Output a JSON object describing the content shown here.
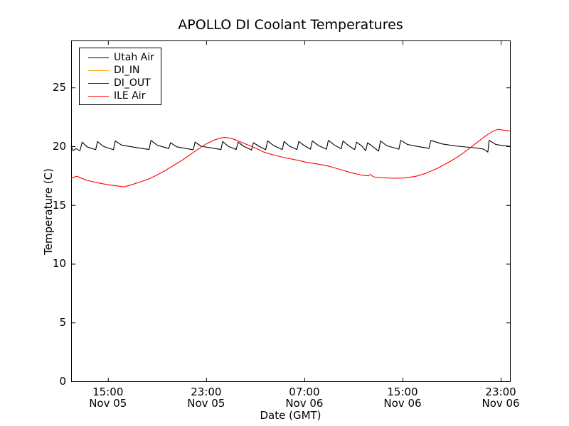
{
  "chart_data": {
    "type": "line",
    "title": "APOLLO DI Coolant Temperatures",
    "xlabel": "Date (GMT)",
    "ylabel": "Temperature (C)",
    "x_units": "hours after Nov 05 12:00 GMT",
    "xlim_hours": [
      0,
      35.75
    ],
    "ylim": [
      0,
      29
    ],
    "grid": false,
    "yticks": [
      0,
      5,
      10,
      15,
      20,
      25
    ],
    "xticks": [
      {
        "h": 3,
        "time": "15:00",
        "date": "Nov 05"
      },
      {
        "h": 11,
        "time": "23:00",
        "date": "Nov 05"
      },
      {
        "h": 19,
        "time": "07:00",
        "date": "Nov 06"
      },
      {
        "h": 27,
        "time": "15:00",
        "date": "Nov 06"
      },
      {
        "h": 35,
        "time": "23:00",
        "date": "Nov 06"
      }
    ],
    "legend": {
      "position": "upper left",
      "entries": [
        "Utah Air",
        "DI_IN",
        "DI_OUT",
        "ILE Air"
      ]
    },
    "series": [
      {
        "name": "Utah Air",
        "color": "#000000",
        "points": [
          [
            0,
            20.0
          ],
          [
            0.15,
            19.62
          ],
          [
            0.4,
            19.8
          ],
          [
            0.72,
            19.62
          ],
          [
            0.9,
            20.35
          ],
          [
            1.3,
            19.95
          ],
          [
            2.0,
            19.7
          ],
          [
            2.15,
            20.4
          ],
          [
            2.6,
            20.0
          ],
          [
            3.45,
            19.7
          ],
          [
            3.6,
            20.45
          ],
          [
            4.1,
            20.1
          ],
          [
            5.2,
            19.9
          ],
          [
            6.35,
            19.72
          ],
          [
            6.5,
            20.5
          ],
          [
            7.0,
            20.1
          ],
          [
            7.95,
            19.8
          ],
          [
            8.1,
            20.3
          ],
          [
            8.6,
            19.95
          ],
          [
            9.95,
            19.7
          ],
          [
            10.1,
            20.35
          ],
          [
            10.6,
            20.0
          ],
          [
            12.2,
            19.72
          ],
          [
            12.35,
            20.4
          ],
          [
            12.8,
            20.0
          ],
          [
            13.45,
            19.72
          ],
          [
            13.6,
            20.35
          ],
          [
            14.05,
            20.0
          ],
          [
            14.7,
            19.68
          ],
          [
            14.85,
            20.3
          ],
          [
            15.3,
            20.0
          ],
          [
            15.85,
            19.7
          ],
          [
            16.0,
            20.45
          ],
          [
            16.5,
            20.05
          ],
          [
            17.2,
            19.72
          ],
          [
            17.35,
            20.4
          ],
          [
            17.8,
            20.0
          ],
          [
            18.4,
            19.72
          ],
          [
            18.55,
            20.4
          ],
          [
            19.0,
            20.05
          ],
          [
            19.5,
            19.75
          ],
          [
            19.65,
            20.45
          ],
          [
            20.15,
            20.05
          ],
          [
            20.8,
            19.75
          ],
          [
            20.95,
            20.5
          ],
          [
            21.45,
            20.1
          ],
          [
            22.0,
            19.78
          ],
          [
            22.15,
            20.45
          ],
          [
            22.6,
            20.05
          ],
          [
            23.1,
            19.72
          ],
          [
            23.25,
            20.35
          ],
          [
            23.7,
            20.0
          ],
          [
            24.0,
            19.62
          ],
          [
            24.15,
            20.3
          ],
          [
            24.6,
            19.95
          ],
          [
            25.05,
            19.58
          ],
          [
            25.2,
            20.45
          ],
          [
            25.7,
            20.05
          ],
          [
            26.7,
            19.75
          ],
          [
            26.85,
            20.5
          ],
          [
            27.4,
            20.15
          ],
          [
            28.4,
            19.95
          ],
          [
            29.15,
            19.82
          ],
          [
            29.3,
            20.5
          ],
          [
            30.2,
            20.2
          ],
          [
            31.5,
            20.0
          ],
          [
            32.8,
            19.88
          ],
          [
            33.6,
            19.75
          ],
          [
            33.95,
            19.5
          ],
          [
            34.05,
            20.5
          ],
          [
            34.6,
            20.15
          ],
          [
            35.2,
            20.05
          ],
          [
            35.75,
            20.0
          ]
        ]
      },
      {
        "name": "DI_IN",
        "color": "#ffa500",
        "points": []
      },
      {
        "name": "DI_OUT",
        "color": "#800080",
        "points": []
      },
      {
        "name": "ILE Air",
        "color": "#ff0000",
        "points": [
          [
            0,
            17.25
          ],
          [
            0.3,
            17.4
          ],
          [
            0.5,
            17.45
          ],
          [
            0.8,
            17.3
          ],
          [
            1.3,
            17.1
          ],
          [
            1.9,
            16.95
          ],
          [
            2.6,
            16.8
          ],
          [
            3.3,
            16.68
          ],
          [
            3.9,
            16.6
          ],
          [
            4.3,
            16.55
          ],
          [
            4.5,
            16.6
          ],
          [
            5.0,
            16.75
          ],
          [
            5.6,
            16.95
          ],
          [
            6.3,
            17.2
          ],
          [
            7.0,
            17.55
          ],
          [
            7.7,
            17.95
          ],
          [
            8.4,
            18.4
          ],
          [
            9.1,
            18.85
          ],
          [
            9.8,
            19.35
          ],
          [
            10.4,
            19.8
          ],
          [
            11.0,
            20.2
          ],
          [
            11.6,
            20.5
          ],
          [
            12.1,
            20.68
          ],
          [
            12.5,
            20.75
          ],
          [
            13.0,
            20.68
          ],
          [
            13.5,
            20.5
          ],
          [
            14.2,
            20.2
          ],
          [
            15.0,
            19.85
          ],
          [
            15.7,
            19.5
          ],
          [
            16.5,
            19.25
          ],
          [
            17.5,
            19.0
          ],
          [
            18.5,
            18.8
          ],
          [
            19.1,
            18.65
          ],
          [
            20.0,
            18.5
          ],
          [
            21.0,
            18.3
          ],
          [
            22.0,
            18.0
          ],
          [
            22.8,
            17.75
          ],
          [
            23.6,
            17.55
          ],
          [
            24.2,
            17.48
          ],
          [
            24.4,
            17.6
          ],
          [
            24.6,
            17.4
          ],
          [
            25.2,
            17.32
          ],
          [
            26.2,
            17.28
          ],
          [
            27.2,
            17.3
          ],
          [
            28.1,
            17.45
          ],
          [
            28.9,
            17.7
          ],
          [
            29.8,
            18.1
          ],
          [
            30.7,
            18.6
          ],
          [
            31.5,
            19.1
          ],
          [
            32.3,
            19.7
          ],
          [
            33.1,
            20.35
          ],
          [
            33.8,
            20.9
          ],
          [
            34.4,
            21.3
          ],
          [
            34.8,
            21.45
          ],
          [
            35.3,
            21.35
          ],
          [
            35.75,
            21.3
          ]
        ]
      }
    ]
  }
}
